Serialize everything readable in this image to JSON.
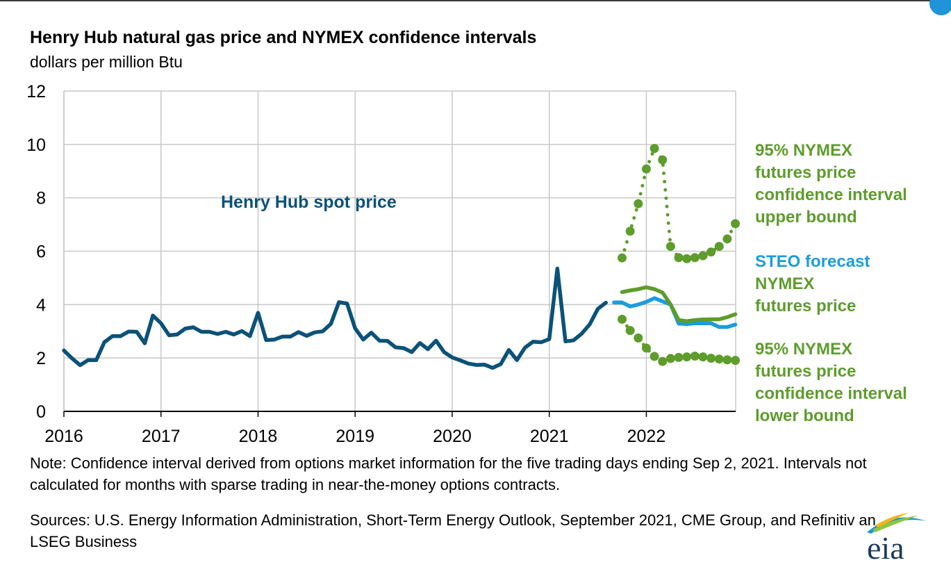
{
  "header": {
    "title": "Henry Hub natural gas price and NYMEX confidence intervals",
    "subtitle": "dollars per million Btu"
  },
  "footer": {
    "note": "Note: Confidence interval derived from options market information for the five trading days ending Sep 2, 2021. Intervals not calculated for months with sparse trading in near-the-money options contracts.",
    "sources": "Sources: U.S. Energy Information Administration, Short-Term Energy Outlook, September 2021, CME Group, and Refinitiv an LSEG Business"
  },
  "logo": {
    "text": "eia"
  },
  "colors": {
    "spot": "#0b5278",
    "forecast": "#1a9ddc",
    "nymex": "#5e9c2c",
    "grid": "#c8c8c8",
    "axis": "#000000"
  },
  "chart_data": {
    "type": "line",
    "title": "Henry Hub natural gas price and NYMEX confidence intervals",
    "ylabel": "dollars per million Btu",
    "xlabel": "",
    "xlim": [
      2016.0,
      2022.92
    ],
    "ylim": [
      0,
      12
    ],
    "y_ticks": [
      0,
      2,
      4,
      6,
      8,
      10,
      12
    ],
    "x_ticks": [
      "2016",
      "2017",
      "2018",
      "2019",
      "2020",
      "2021",
      "2022"
    ],
    "grid": "vertical and horizontal",
    "series": [
      {
        "name": "Henry Hub spot price",
        "style": "solid",
        "x": [
          "2016-01",
          "2016-02",
          "2016-03",
          "2016-04",
          "2016-05",
          "2016-06",
          "2016-07",
          "2016-08",
          "2016-09",
          "2016-10",
          "2016-11",
          "2016-12",
          "2017-01",
          "2017-02",
          "2017-03",
          "2017-04",
          "2017-05",
          "2017-06",
          "2017-07",
          "2017-08",
          "2017-09",
          "2017-10",
          "2017-11",
          "2017-12",
          "2018-01",
          "2018-02",
          "2018-03",
          "2018-04",
          "2018-05",
          "2018-06",
          "2018-07",
          "2018-08",
          "2018-09",
          "2018-10",
          "2018-11",
          "2018-12",
          "2019-01",
          "2019-02",
          "2019-03",
          "2019-04",
          "2019-05",
          "2019-06",
          "2019-07",
          "2019-08",
          "2019-09",
          "2019-10",
          "2019-11",
          "2019-12",
          "2020-01",
          "2020-02",
          "2020-03",
          "2020-04",
          "2020-05",
          "2020-06",
          "2020-07",
          "2020-08",
          "2020-09",
          "2020-10",
          "2020-11",
          "2020-12",
          "2021-01",
          "2021-02",
          "2021-03",
          "2021-04",
          "2021-05",
          "2021-06",
          "2021-07",
          "2021-08"
        ],
        "values": [
          2.28,
          1.99,
          1.73,
          1.92,
          1.92,
          2.59,
          2.82,
          2.82,
          2.99,
          2.98,
          2.55,
          3.59,
          3.3,
          2.85,
          2.88,
          3.1,
          3.15,
          2.98,
          2.98,
          2.9,
          2.98,
          2.88,
          3.01,
          2.82,
          3.69,
          2.67,
          2.69,
          2.8,
          2.8,
          2.97,
          2.83,
          2.96,
          3.0,
          3.28,
          4.09,
          4.04,
          3.11,
          2.69,
          2.95,
          2.65,
          2.64,
          2.4,
          2.37,
          2.22,
          2.56,
          2.33,
          2.65,
          2.22,
          2.02,
          1.91,
          1.79,
          1.74,
          1.75,
          1.63,
          1.77,
          2.3,
          1.92,
          2.39,
          2.61,
          2.59,
          2.71,
          5.35,
          2.62,
          2.66,
          2.91,
          3.26,
          3.84,
          4.07
        ]
      },
      {
        "name": "STEO forecast",
        "style": "solid",
        "x": [
          "2021-09",
          "2021-10",
          "2021-11",
          "2021-12",
          "2022-01",
          "2022-02",
          "2022-03",
          "2022-04",
          "2022-05",
          "2022-06",
          "2022-07",
          "2022-08",
          "2022-09",
          "2022-10",
          "2022-11",
          "2022-12"
        ],
        "values": [
          4.08,
          4.08,
          3.93,
          4.0,
          4.1,
          4.24,
          4.12,
          4.0,
          3.29,
          3.27,
          3.3,
          3.3,
          3.3,
          3.16,
          3.16,
          3.25
        ]
      },
      {
        "name": "NYMEX futures price",
        "style": "solid",
        "x": [
          "2021-10",
          "2021-11",
          "2021-12",
          "2022-01",
          "2022-02",
          "2022-03",
          "2022-04",
          "2022-05",
          "2022-06",
          "2022-07",
          "2022-08",
          "2022-09",
          "2022-10",
          "2022-11",
          "2022-12"
        ],
        "values": [
          4.47,
          4.53,
          4.58,
          4.65,
          4.58,
          4.45,
          4.0,
          3.42,
          3.38,
          3.42,
          3.44,
          3.45,
          3.45,
          3.53,
          3.64
        ]
      },
      {
        "name": "95% NYMEX futures price confidence interval upper bound",
        "style": "dotted",
        "x": [
          "2021-10",
          "2021-11",
          "2021-12",
          "2022-01",
          "2022-02",
          "2022-03",
          "2022-04",
          "2022-05",
          "2022-06",
          "2022-07",
          "2022-08",
          "2022-09",
          "2022-10",
          "2022-11",
          "2022-12"
        ],
        "values": [
          5.75,
          6.75,
          7.78,
          9.08,
          9.85,
          9.42,
          6.18,
          5.76,
          5.72,
          5.76,
          5.83,
          5.97,
          6.18,
          6.46,
          7.03
        ]
      },
      {
        "name": "95% NYMEX futures price confidence interval lower bound",
        "style": "dotted",
        "x": [
          "2021-10",
          "2021-11",
          "2021-12",
          "2022-01",
          "2022-02",
          "2022-03",
          "2022-04",
          "2022-05",
          "2022-06",
          "2022-07",
          "2022-08",
          "2022-09",
          "2022-10",
          "2022-11",
          "2022-12"
        ],
        "values": [
          3.45,
          3.03,
          2.75,
          2.37,
          2.06,
          1.87,
          1.98,
          2.02,
          2.04,
          2.07,
          2.04,
          1.99,
          1.96,
          1.93,
          1.91
        ]
      }
    ],
    "annotations": {
      "spot": "Henry Hub spot price",
      "upper": [
        "95% NYMEX",
        "futures price",
        "confidence interval",
        "upper bound"
      ],
      "steo": "STEO forecast",
      "nymex": [
        "NYMEX",
        "futures price"
      ],
      "lower": [
        "95% NYMEX",
        "futures price",
        "confidence interval",
        "lower bound"
      ]
    }
  }
}
